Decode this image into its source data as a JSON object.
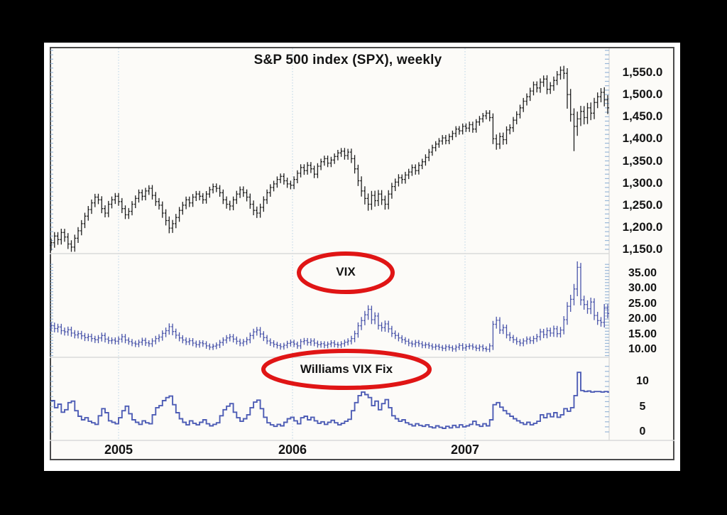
{
  "title": "S&P 500 index (SPX), weekly",
  "panels": {
    "spx": {
      "label": "S&P 500 index (SPX), weekly",
      "y_ticks_text": [
        "1,550.0",
        "1,500.0",
        "1,450.0",
        "1,400.0",
        "1,350.0",
        "1,300.0",
        "1,250.0",
        "1,200.0",
        "1,150.0"
      ],
      "y_ticks_values": [
        1550,
        1500,
        1450,
        1400,
        1350,
        1300,
        1250,
        1200,
        1150
      ]
    },
    "vix": {
      "label": "VIX",
      "y_ticks_text": [
        "35.00",
        "30.00",
        "25.00",
        "20.00",
        "15.00",
        "10.00"
      ],
      "y_ticks_values": [
        35,
        30,
        25,
        20,
        15,
        10
      ]
    },
    "wvf": {
      "label": "Williams VIX Fix",
      "y_ticks_text": [
        "10",
        "5",
        "0"
      ],
      "y_ticks_values": [
        10,
        5,
        0
      ]
    }
  },
  "x_axis": {
    "year_labels": [
      "2005",
      "2006",
      "2007"
    ]
  },
  "colors": {
    "background": "#000000",
    "frame": "#ffffff",
    "chart_bg": "#fcfbf8",
    "border": "#4b4b4b",
    "spx_bars": "#1f1f1f",
    "vix_bars": "#4a55aa",
    "wvf_line": "#4d5cb5",
    "annotation_red": "#e01515",
    "gridline": "#b9d2e4",
    "separator": "#d9d9d9",
    "tick_blue": "#9ab8d8"
  },
  "chart_data": [
    {
      "type": "bar",
      "subtype": "ohlc-weekly",
      "name": "S&P 500 index (SPX), weekly",
      "x_labels": [
        "2005",
        "2006",
        "2007"
      ],
      "x_note": "weekly bars, ~Aug 2004 through Oct 2007, 166 weeks",
      "ylim": [
        1145,
        1605
      ],
      "y_ticks": [
        1150,
        1200,
        1250,
        1300,
        1350,
        1400,
        1450,
        1500,
        1550
      ],
      "grid": "vertical dotted yearly gridlines",
      "legend_position": "none",
      "closes": [
        1165,
        1180,
        1172,
        1188,
        1178,
        1162,
        1155,
        1175,
        1192,
        1208,
        1225,
        1240,
        1255,
        1268,
        1262,
        1242,
        1232,
        1252,
        1262,
        1270,
        1258,
        1242,
        1228,
        1236,
        1252,
        1265,
        1278,
        1270,
        1282,
        1288,
        1272,
        1258,
        1250,
        1232,
        1215,
        1198,
        1208,
        1222,
        1238,
        1250,
        1262,
        1255,
        1268,
        1275,
        1270,
        1262,
        1275,
        1285,
        1292,
        1288,
        1278,
        1262,
        1252,
        1248,
        1262,
        1275,
        1285,
        1278,
        1268,
        1252,
        1238,
        1232,
        1245,
        1262,
        1278,
        1290,
        1298,
        1308,
        1315,
        1305,
        1298,
        1295,
        1308,
        1322,
        1335,
        1328,
        1340,
        1332,
        1320,
        1338,
        1348,
        1355,
        1345,
        1352,
        1360,
        1368,
        1372,
        1362,
        1370,
        1355,
        1332,
        1305,
        1282,
        1265,
        1252,
        1272,
        1260,
        1275,
        1262,
        1252,
        1275,
        1292,
        1302,
        1312,
        1308,
        1318,
        1325,
        1335,
        1328,
        1340,
        1348,
        1358,
        1370,
        1380,
        1388,
        1395,
        1402,
        1396,
        1405,
        1412,
        1422,
        1418,
        1428,
        1424,
        1432,
        1422,
        1438,
        1445,
        1452,
        1458,
        1448,
        1400,
        1388,
        1405,
        1398,
        1420,
        1425,
        1442,
        1455,
        1470,
        1485,
        1495,
        1508,
        1522,
        1515,
        1528,
        1535,
        1512,
        1520,
        1532,
        1545,
        1555,
        1548,
        1500,
        1455,
        1428,
        1445,
        1462,
        1448,
        1470,
        1458,
        1482,
        1495,
        1505,
        1488,
        1470
      ],
      "low_overrides": {
        "153": 1468,
        "155": 1372
      }
    },
    {
      "type": "bar",
      "subtype": "ohlc-weekly",
      "name": "VIX",
      "ylim": [
        7.5,
        41
      ],
      "y_ticks": [
        10,
        15,
        20,
        25,
        30,
        35
      ],
      "legend_position": "none",
      "closes": [
        17.8,
        16.9,
        17.4,
        16.2,
        15.8,
        16.5,
        15.4,
        14.8,
        15.2,
        14.5,
        13.9,
        14.3,
        13.6,
        13.2,
        13.8,
        14.6,
        13.4,
        12.9,
        13.1,
        12.7,
        13.4,
        14.2,
        13.1,
        12.6,
        12.1,
        11.8,
        12.4,
        13.0,
        12.2,
        11.9,
        12.8,
        13.6,
        14.1,
        15.3,
        16.2,
        17.5,
        15.9,
        14.7,
        13.8,
        13.1,
        12.5,
        12.9,
        12.1,
        11.6,
        12.2,
        11.9,
        11.2,
        10.8,
        11.1,
        11.5,
        12.3,
        13.1,
        13.8,
        14.2,
        13.4,
        12.7,
        12.1,
        12.6,
        13.2,
        14.6,
        15.8,
        16.4,
        15.1,
        13.9,
        12.8,
        12.2,
        11.7,
        11.3,
        10.9,
        11.4,
        12.0,
        12.4,
        11.8,
        11.2,
        12.6,
        12.9,
        12.3,
        12.8,
        12.1,
        11.6,
        11.9,
        11.4,
        11.8,
        12.2,
        11.7,
        11.5,
        11.9,
        12.4,
        12.8,
        13.6,
        15.2,
        17.8,
        19.5,
        21.4,
        23.2,
        19.8,
        21.0,
        17.9,
        17.2,
        18.4,
        16.8,
        15.3,
        14.6,
        13.8,
        13.2,
        12.7,
        12.1,
        11.8,
        12.3,
        11.9,
        11.4,
        11.6,
        11.2,
        10.8,
        11.1,
        10.7,
        10.4,
        10.9,
        10.6,
        10.2,
        10.8,
        11.3,
        10.5,
        11.0,
        11.2,
        10.8,
        10.4,
        10.9,
        10.3,
        10.1,
        11.2,
        18.3,
        19.6,
        16.4,
        17.2,
        14.8,
        13.9,
        13.2,
        12.6,
        12.1,
        12.8,
        13.4,
        12.9,
        13.6,
        14.2,
        15.8,
        14.9,
        16.2,
        15.4,
        16.8,
        15.2,
        16.4,
        19.8,
        24.2,
        26.5,
        29.9,
        37.0,
        26.3,
        24.8,
        23.4,
        25.6,
        21.2,
        19.5,
        18.9,
        23.6,
        21.8
      ]
    },
    {
      "type": "line",
      "subtype": "step",
      "name": "Williams VIX Fix",
      "ylim": [
        -1.7,
        14.5
      ],
      "y_ticks": [
        0,
        5,
        10
      ],
      "legend_position": "none",
      "values": [
        6.2,
        4.8,
        5.5,
        3.9,
        4.4,
        5.8,
        6.1,
        4.2,
        3.1,
        2.4,
        2.8,
        2.1,
        1.8,
        1.5,
        3.2,
        4.6,
        3.8,
        2.2,
        1.9,
        1.6,
        2.8,
        4.2,
        5.1,
        3.6,
        2.4,
        1.9,
        1.5,
        2.2,
        1.8,
        1.6,
        3.4,
        4.8,
        5.2,
        6.2,
        6.8,
        7.1,
        5.4,
        3.8,
        2.6,
        1.9,
        1.4,
        2.2,
        1.7,
        1.4,
        1.9,
        2.4,
        1.6,
        1.2,
        1.5,
        1.8,
        3.2,
        4.4,
        5.1,
        5.6,
        3.9,
        2.8,
        2.1,
        2.6,
        3.4,
        4.8,
        5.9,
        6.3,
        4.6,
        2.9,
        1.8,
        1.4,
        1.1,
        1.5,
        1.2,
        1.9,
        2.6,
        2.9,
        2.2,
        1.6,
        2.8,
        3.1,
        2.4,
        2.9,
        2.2,
        1.7,
        2.0,
        1.5,
        1.9,
        2.3,
        1.8,
        1.4,
        1.7,
        2.1,
        2.5,
        4.2,
        5.8,
        7.2,
        7.9,
        7.4,
        6.8,
        5.2,
        6.1,
        4.4,
        5.6,
        6.4,
        4.8,
        3.2,
        2.6,
        2.1,
        2.4,
        1.8,
        1.5,
        1.2,
        1.6,
        1.3,
        1.1,
        1.4,
        1.0,
        0.8,
        1.2,
        0.9,
        0.7,
        1.1,
        0.8,
        1.3,
        0.9,
        1.4,
        1.0,
        1.2,
        1.5,
        2.1,
        1.4,
        1.1,
        1.6,
        1.2,
        2.4,
        5.4,
        5.8,
        4.9,
        4.2,
        3.6,
        3.1,
        2.6,
        2.2,
        1.8,
        1.5,
        1.9,
        1.4,
        1.7,
        2.1,
        3.4,
        2.8,
        3.6,
        3.0,
        3.8,
        2.9,
        3.4,
        4.6,
        4.1,
        4.8,
        7.2,
        11.8,
        8.2,
        8.0,
        8.1,
        7.9,
        8.0,
        8.0,
        7.9,
        8.0,
        7.9
      ]
    }
  ]
}
